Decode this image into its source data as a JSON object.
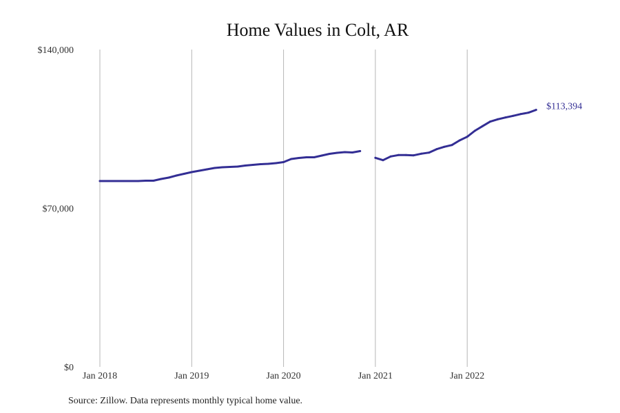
{
  "chart_data": {
    "type": "line",
    "title": "Home Values in Colt, AR",
    "xlabel": "",
    "ylabel": "",
    "ylim": [
      0,
      140000
    ],
    "y_ticks": [
      {
        "value": 0,
        "label": "$0"
      },
      {
        "value": 70000,
        "label": "$70,000"
      },
      {
        "value": 140000,
        "label": "$140,000"
      }
    ],
    "x_ticks": [
      {
        "month_index": 0,
        "label": "Jan 2018"
      },
      {
        "month_index": 12,
        "label": "Jan 2019"
      },
      {
        "month_index": 24,
        "label": "Jan 2020"
      },
      {
        "month_index": 36,
        "label": "Jan 2021"
      },
      {
        "month_index": 48,
        "label": "Jan 2022"
      }
    ],
    "grid": "vertical lines at year starts",
    "start": "Jan 2018",
    "series": [
      {
        "name": "Typical home value",
        "color": "#332e94",
        "values": [
          82000,
          82000,
          82000,
          82000,
          82000,
          82000,
          82150,
          82150,
          82910,
          83520,
          84430,
          85190,
          85950,
          86550,
          87160,
          87770,
          88070,
          88230,
          88380,
          88830,
          89140,
          89440,
          89590,
          89900,
          90350,
          91720,
          92170,
          92480,
          92480,
          93240,
          94000,
          94450,
          94750,
          94600,
          95210,
          null,
          92230,
          91200,
          92840,
          93450,
          93450,
          93330,
          94060,
          94540,
          96060,
          97090,
          97880,
          99910,
          101530,
          104170,
          106200,
          108210,
          109240,
          110030,
          110760,
          111550,
          112160,
          113394
        ]
      }
    ],
    "end_label": "$113,394",
    "source": "Source: Zillow. Data represents monthly typical home value."
  }
}
